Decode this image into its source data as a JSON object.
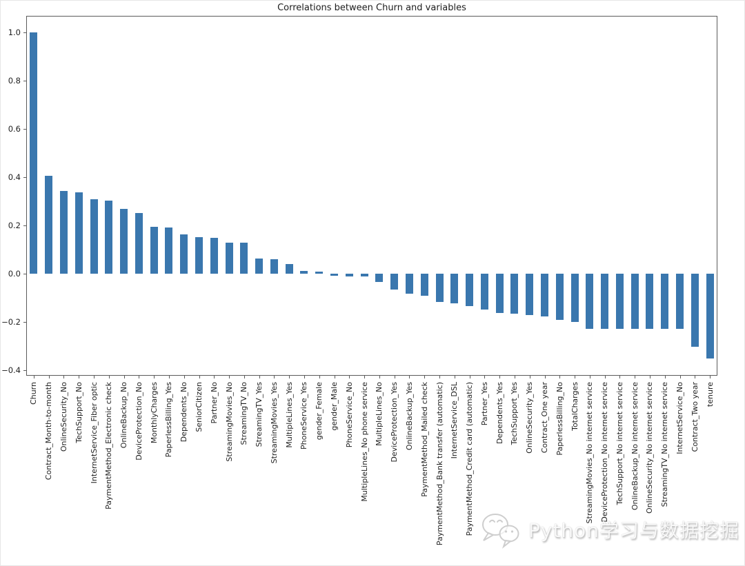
{
  "title": "Correlations between Churn and variables",
  "watermark": {
    "text": "Python学习与数据挖掘",
    "icon": "wechat-icon"
  },
  "colors": {
    "bar": "#3a77ae",
    "background": "#ffffff",
    "axis": "#5a5a5a",
    "text": "#1f1f1f"
  },
  "chart_data": {
    "type": "bar",
    "title": "Correlations between Churn and variables",
    "xlabel": "",
    "ylabel": "",
    "legend": null,
    "grid": false,
    "ylim": [
      -0.423,
      1.069
    ],
    "yticks": [
      1.0,
      0.8,
      0.6,
      0.4,
      0.2,
      0.0,
      -0.2,
      -0.4
    ],
    "ytick_labels": [
      "1.0",
      "0.8",
      "0.6",
      "0.4",
      "0.2",
      "0.0",
      "−0.2",
      "−0.4"
    ],
    "x_tick_rotation_deg": 90,
    "bar_color": "#3a77ae",
    "categories": [
      "Churn",
      "Contract_Month-to-month",
      "OnlineSecurity_No",
      "TechSupport_No",
      "InternetService_Fiber optic",
      "PaymentMethod_Electronic check",
      "OnlineBackup_No",
      "DeviceProtection_No",
      "MonthlyCharges",
      "PaperlessBilling_Yes",
      "Dependents_No",
      "SeniorCitizen",
      "Partner_No",
      "StreamingMovies_No",
      "StreamingTV_No",
      "StreamingTV_Yes",
      "StreamingMovies_Yes",
      "MultipleLines_Yes",
      "PhoneService_Yes",
      "gender_Female",
      "gender_Male",
      "PhoneService_No",
      "MultipleLines_No phone service",
      "MultipleLines_No",
      "DeviceProtection_Yes",
      "OnlineBackup_Yes",
      "PaymentMethod_Mailed check",
      "PaymentMethod_Bank transfer (automatic)",
      "InternetService_DSL",
      "PaymentMethod_Credit card (automatic)",
      "Partner_Yes",
      "Dependents_Yes",
      "TechSupport_Yes",
      "OnlineSecurity_Yes",
      "Contract_One year",
      "PaperlessBilling_No",
      "TotalCharges",
      "StreamingMovies_No internet service",
      "DeviceProtection_No internet service",
      "TechSupport_No internet service",
      "OnlineBackup_No internet service",
      "OnlineSecurity_No internet service",
      "StreamingTV_No internet service",
      "InternetService_No",
      "Contract_Two year",
      "tenure"
    ],
    "values": [
      1.0,
      0.405,
      0.342,
      0.337,
      0.308,
      0.302,
      0.268,
      0.252,
      0.193,
      0.192,
      0.164,
      0.151,
      0.15,
      0.13,
      0.128,
      0.063,
      0.061,
      0.04,
      0.012,
      0.009,
      -0.009,
      -0.012,
      -0.012,
      -0.033,
      -0.066,
      -0.082,
      -0.091,
      -0.118,
      -0.124,
      -0.134,
      -0.15,
      -0.164,
      -0.165,
      -0.171,
      -0.178,
      -0.192,
      -0.199,
      -0.228,
      -0.228,
      -0.228,
      -0.228,
      -0.228,
      -0.228,
      -0.228,
      -0.302,
      -0.352
    ]
  }
}
